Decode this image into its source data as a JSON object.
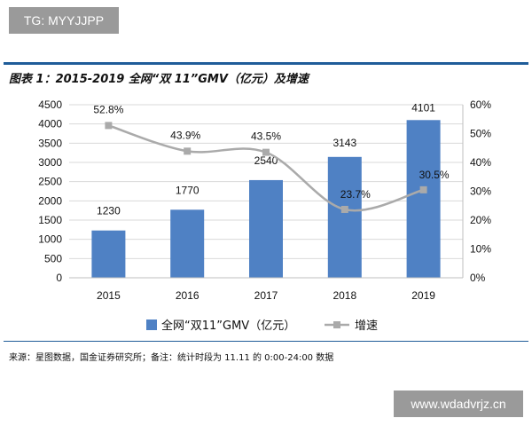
{
  "watermarks": {
    "top_left": "TG: MYYJJPP",
    "bottom_right": "www.wdadvrjz.cn"
  },
  "title": "图表 1：2015-2019 全网“双 11”GMV（亿元）及增速",
  "source": "来源：星图数据，国金证券研究所；备注：统计时段为 11.11 的 0:00-24:00 数据",
  "colors": {
    "bar": "#4f81c4",
    "line": "#aaaaaa",
    "marker": "#aaaaaa",
    "grid": "#d9d9d9",
    "rule": "#1f5c99"
  },
  "chart_data": {
    "type": "bar",
    "categories": [
      "2015",
      "2016",
      "2017",
      "2018",
      "2019"
    ],
    "series": [
      {
        "name": "全网“双11”GMV（亿元）",
        "type": "bar",
        "axis": "left",
        "values": [
          1230,
          1770,
          2540,
          3143,
          4101
        ],
        "labels": [
          "1230",
          "1770",
          "2540",
          "3143",
          "4101"
        ]
      },
      {
        "name": "增速",
        "type": "line",
        "axis": "right",
        "values": [
          52.8,
          43.9,
          43.5,
          23.7,
          30.5
        ],
        "labels": [
          "52.8%",
          "43.9%",
          "43.5%",
          "23.7%",
          "30.5%"
        ]
      }
    ],
    "y_left": {
      "min": 0,
      "max": 4500,
      "ticks": [
        "0",
        "500",
        "1000",
        "1500",
        "2000",
        "2500",
        "3000",
        "3500",
        "4000",
        "4500"
      ]
    },
    "y_right": {
      "min": 0,
      "max": 60,
      "ticks": [
        "0%",
        "10%",
        "20%",
        "30%",
        "40%",
        "50%",
        "60%"
      ]
    },
    "grid": true,
    "legend": "bottom"
  }
}
